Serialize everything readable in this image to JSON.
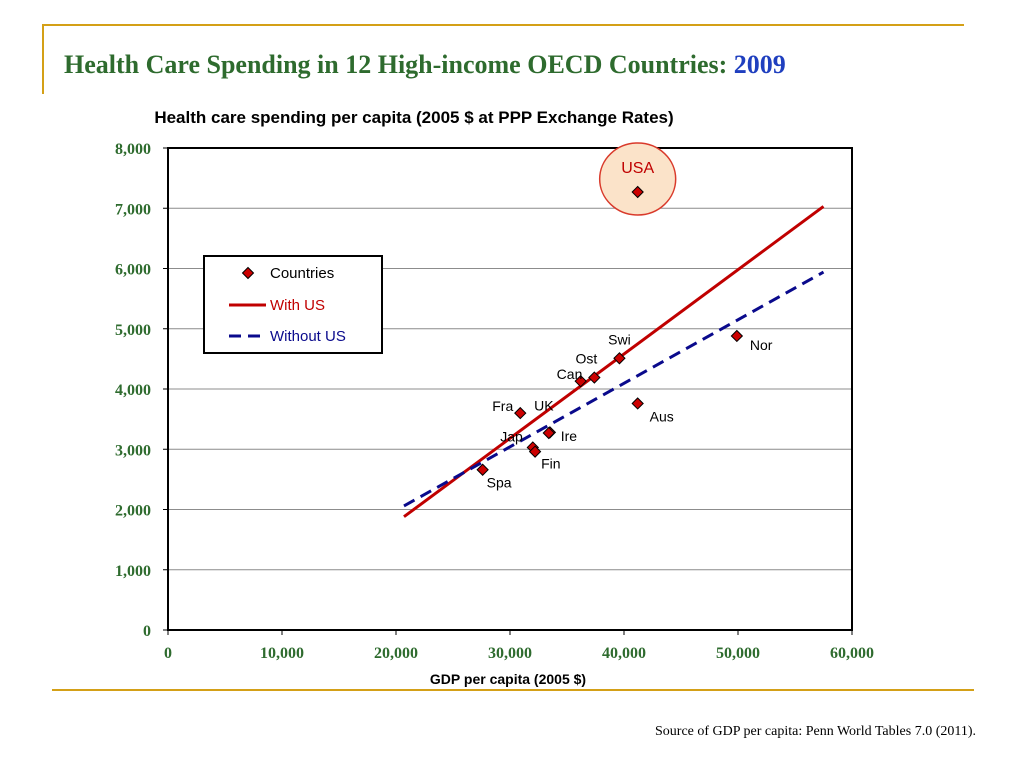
{
  "slide": {
    "title": "Health Care Spending in 12 High-income OECD Countries: ",
    "title_year": "2009",
    "source": "Source of GDP per capita: Penn World Tables 7.0 (2011)."
  },
  "colors": {
    "title_green": "#2e6b2e",
    "year_blue": "#1f3fbf",
    "frame_gold": "#d4a017",
    "point_red": "#cc0000",
    "with_us_red": "#c00000",
    "without_us_blue": "#0a0a8c"
  },
  "chart_data": {
    "type": "scatter",
    "title": "Health care spending per capita (2005 $ at PPP Exchange Rates)",
    "xlabel": "GDP per capita (2005 $)",
    "ylabel": "",
    "xlim": [
      0,
      60000
    ],
    "ylim": [
      0,
      8000
    ],
    "xticks": [
      0,
      10000,
      20000,
      30000,
      40000,
      50000,
      60000
    ],
    "xtick_labels": [
      "0",
      "10,000",
      "20,000",
      "30,000",
      "40,000",
      "50,000",
      "60,000"
    ],
    "yticks": [
      0,
      1000,
      2000,
      3000,
      4000,
      5000,
      6000,
      7000,
      8000
    ],
    "ytick_labels": [
      "0",
      "1,000",
      "2,000",
      "3,000",
      "4,000",
      "5,000",
      "6,000",
      "7,000",
      "8,000"
    ],
    "grid": "horizontal",
    "legend": {
      "placement": "upper-left",
      "entries": [
        "Countries",
        "With US",
        "Without US"
      ]
    },
    "points": [
      {
        "label": "USA",
        "x": 41200,
        "y": 7270,
        "highlight": true
      },
      {
        "label": "Nor",
        "x": 49900,
        "y": 4880
      },
      {
        "label": "Swi",
        "x": 39600,
        "y": 4510
      },
      {
        "label": "Ost",
        "x": 37400,
        "y": 4190
      },
      {
        "label": "Can",
        "x": 36200,
        "y": 4130
      },
      {
        "label": "Aus",
        "x": 41200,
        "y": 3760
      },
      {
        "label": "Fra",
        "x": 30900,
        "y": 3600
      },
      {
        "label": "UK",
        "x": 33500,
        "y": 3280
      },
      {
        "label": "Ire",
        "x": 33400,
        "y": 3270
      },
      {
        "label": "Jap",
        "x": 32000,
        "y": 3030
      },
      {
        "label": "Fin",
        "x": 32200,
        "y": 2960
      },
      {
        "label": "Spa",
        "x": 27600,
        "y": 2660
      }
    ],
    "series": [
      {
        "name": "With US",
        "style": "solid",
        "points": [
          [
            20700,
            1880
          ],
          [
            57500,
            7030
          ]
        ]
      },
      {
        "name": "Without US",
        "style": "dashed",
        "points": [
          [
            20700,
            2060
          ],
          [
            57500,
            5940
          ]
        ]
      }
    ]
  }
}
